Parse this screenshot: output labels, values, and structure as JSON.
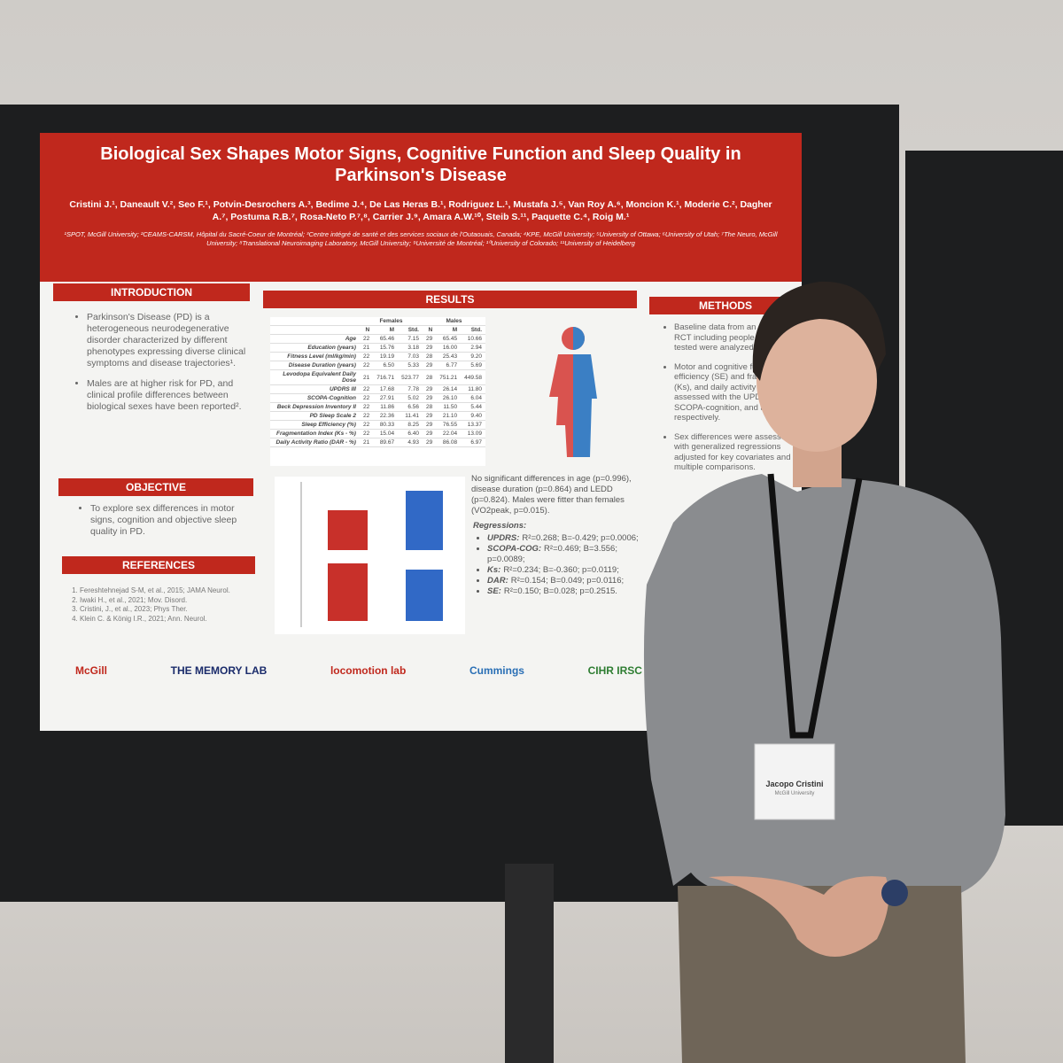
{
  "poster": {
    "title": "Biological Sex Shapes Motor Signs, Cognitive Function and Sleep Quality in Parkinson's Disease",
    "authors": "Cristini J.¹, Daneault V.², Seo F.¹, Potvin-Desrochers A.³, Bedime J.⁴, De Las Heras B.¹, Rodriguez L.¹, Mustafa J.⁵, Van Roy A.⁶, Moncion K.¹, Moderie C.², Dagher A.⁷, Postuma R.B.⁷, Rosa-Neto P.⁷,⁸, Carrier J.⁹, Amara A.W.¹⁰, Steib S.¹¹, Paquette C.⁴, Roig M.¹",
    "affiliations": "¹SPOT, McGill University; ²CEAMS-CARSM, Hôpital du Sacré-Coeur de Montréal; ³Centre intégré de santé et des services sociaux de l'Outaouais, Canada; ⁴KPE, McGill University; ⁵University of Ottawa; ⁶University of Utah; ⁷The Neuro, McGill University; ⁸Translational Neuroimaging Laboratory, McGill University; ⁹Université de Montréal; ¹⁰University of Colorado; ¹¹University of Heidelberg",
    "introduction": {
      "heading": "INTRODUCTION",
      "bullets": [
        "Parkinson's Disease (PD) is a heterogeneous neurodegenerative disorder characterized by different phenotypes expressing diverse clinical symptoms and disease trajectories¹.",
        "Males are at higher risk for PD, and clinical profile differences between biological sexes have been reported²."
      ]
    },
    "objective": {
      "heading": "OBJECTIVE",
      "bullets": [
        "To explore sex differences in motor signs, cognition and objective sleep quality in PD."
      ]
    },
    "references": {
      "heading": "REFERENCES",
      "items": [
        "Fereshtehnejad S-M, et al., 2015; JAMA Neurol.",
        "Iwaki H., et al., 2021; Mov. Disord.",
        "Cristini, J., et al., 2023; Phys Ther.",
        "Klein C. & König I.R., 2021; Ann. Neurol."
      ]
    },
    "results": {
      "heading": "RESULTS",
      "table": {
        "group_headers": [
          "Females",
          "Males"
        ],
        "columns": [
          "N",
          "M",
          "Std.",
          "N",
          "M",
          "Std."
        ],
        "rows": [
          [
            "Age",
            "22",
            "65.46",
            "7.15",
            "29",
            "65.45",
            "10.66"
          ],
          [
            "Education (years)",
            "21",
            "15.76",
            "3.18",
            "29",
            "16.00",
            "2.94"
          ],
          [
            "Fitness Level (ml/kg/min)",
            "22",
            "19.19",
            "7.03",
            "28",
            "25.43",
            "9.20"
          ],
          [
            "Disease Duration (years)",
            "22",
            "6.50",
            "5.33",
            "29",
            "6.77",
            "5.69"
          ],
          [
            "Levodopa Equivalent Daily Dose",
            "21",
            "716.71",
            "523.77",
            "28",
            "751.21",
            "449.58"
          ],
          [
            "UPDRS III",
            "22",
            "17.68",
            "7.78",
            "29",
            "26.14",
            "11.80"
          ],
          [
            "SCOPA-Cognition",
            "22",
            "27.91",
            "5.02",
            "29",
            "26.10",
            "6.04"
          ],
          [
            "Beck Depression Inventory II",
            "22",
            "11.86",
            "6.56",
            "28",
            "11.50",
            "5.44"
          ],
          [
            "PD Sleep Scale 2",
            "22",
            "22.36",
            "11.41",
            "29",
            "21.10",
            "9.40"
          ],
          [
            "Sleep Efficiency (%)",
            "22",
            "80.33",
            "8.25",
            "29",
            "76.55",
            "13.37"
          ],
          [
            "Fragmentation Index (Ks - %)",
            "22",
            "15.04",
            "6.40",
            "29",
            "22.04",
            "13.09"
          ],
          [
            "Daily Activity Ratio (DAR - %)",
            "21",
            "89.67",
            "4.93",
            "29",
            "86.08",
            "6.97"
          ]
        ]
      },
      "summary": "No significant differences in age (p=0.996), disease duration (p=0.864) and LEDD (p=0.824). Males were fitter than females (VO2peak, p=0.015).",
      "regressions_heading": "Regressions:",
      "regressions": [
        {
          "label": "UPDRS:",
          "text": "R²=0.268; B=-0.429; p=0.0006;"
        },
        {
          "label": "SCOPA-COG:",
          "text": "R²=0.469; B=3.556; p=0.0089;"
        },
        {
          "label": "Ks:",
          "text": "R²=0.234; B=-0.360; p=0.0119;"
        },
        {
          "label": "DAR:",
          "text": "R²=0.154; B=0.049; p=0.0116;"
        },
        {
          "label": "SE:",
          "text": "R²=0.150; B=0.028; p=0.2515."
        }
      ]
    },
    "methods": {
      "heading": "METHODS",
      "bullets": [
        "Baseline data from an ongoing RCT including people with PD tested were analyzed³.",
        "Motor and cognitive function, sleep efficiency (SE) and fragmentation (Ks), and daily activity (DAR) were assessed with the UPDRS-III, SCOPA-cognition, and actigraphy, respectively.",
        "Sex differences were assessed with generalized regressions adjusted for key covariates and multiple comparisons."
      ]
    },
    "logos": [
      "McGill",
      "THE MEMORY LAB",
      "locomotion lab",
      "Cummings",
      "CIHR IRSC"
    ]
  },
  "badge": {
    "name": "Jacopo Cristini",
    "affiliation": "McGill University"
  }
}
